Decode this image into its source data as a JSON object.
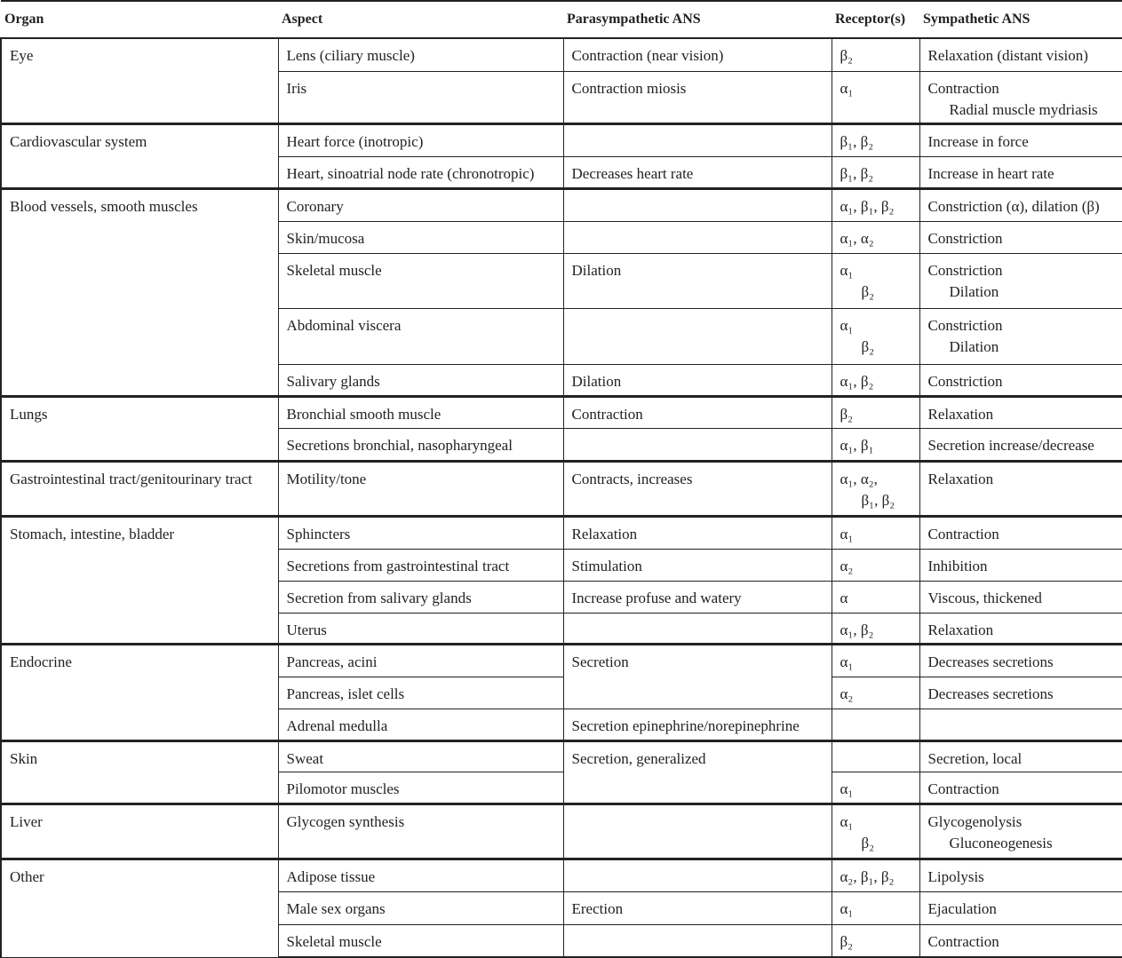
{
  "header": {
    "organ": "Organ",
    "aspect": "Aspect",
    "para": "Parasympathetic ANS",
    "rec": "Receptor(s)",
    "sym": "Sympathetic ANS"
  },
  "rows": [
    {
      "organ": "Eye",
      "aspect": "Lens (ciliary muscle)",
      "para": "Contraction (near vision)",
      "rec": [
        "β₂"
      ],
      "sym": [
        "Relaxation (distant vision)"
      ]
    },
    {
      "aspect": "Iris",
      "para": "Contraction miosis",
      "rec": [
        "α₁"
      ],
      "sym": [
        "Contraction",
        "Radial muscle mydriasis"
      ]
    },
    {
      "organ": "Cardiovascular system",
      "aspect": "Heart force (inotropic)",
      "para": "",
      "rec": [
        "β₁, β₂"
      ],
      "sym": [
        "Increase in force"
      ]
    },
    {
      "aspect": "Heart, sinoatrial node rate (chronotropic)",
      "para": "Decreases heart rate",
      "rec": [
        "β₁, β₂"
      ],
      "sym": [
        "Increase in heart rate"
      ]
    },
    {
      "organ": "Blood vessels, smooth muscles",
      "aspect": "Coronary",
      "para": "",
      "rec": [
        "α₁, β₁, β₂"
      ],
      "sym": [
        "Constriction (α), dilation (β)"
      ]
    },
    {
      "aspect": "Skin/mucosa",
      "para": "",
      "rec": [
        "α₁, α₂"
      ],
      "sym": [
        "Constriction"
      ]
    },
    {
      "aspect": "Skeletal muscle",
      "para": "Dilation",
      "rec": [
        "α₁",
        "β₂"
      ],
      "sym": [
        "Constriction",
        "Dilation"
      ]
    },
    {
      "aspect": "Abdominal viscera",
      "para": "",
      "rec": [
        "α₁",
        "β₂"
      ],
      "sym": [
        "Constriction",
        "Dilation"
      ]
    },
    {
      "aspect": "Salivary glands",
      "para": "Dilation",
      "rec": [
        "α₁, β₂"
      ],
      "sym": [
        "Constriction"
      ]
    },
    {
      "organ": "Lungs",
      "aspect": "Bronchial smooth muscle",
      "para": "Contraction",
      "rec": [
        "β₂"
      ],
      "sym": [
        "Relaxation"
      ]
    },
    {
      "aspect": "Secretions bronchial, nasopharyngeal",
      "para": "",
      "rec": [
        "α₁, β₁"
      ],
      "sym": [
        "Secretion increase/decrease"
      ]
    },
    {
      "organ": "Gastrointestinal tract/genitourinary tract",
      "aspect": "Motility/tone",
      "para": "Contracts, increases",
      "rec": [
        "α₁, α₂,",
        "β₁, β₂"
      ],
      "sym": [
        "Relaxation"
      ]
    },
    {
      "organ": "Stomach, intestine, bladder",
      "aspect": "Sphincters",
      "para": "Relaxation",
      "rec": [
        "α₁"
      ],
      "sym": [
        "Contraction"
      ]
    },
    {
      "aspect": "Secretions from gastrointestinal tract",
      "para": "Stimulation",
      "rec": [
        "α₂"
      ],
      "sym": [
        "Inhibition"
      ]
    },
    {
      "aspect": "Secretion from salivary glands",
      "para": "Increase profuse and watery",
      "rec": [
        "α"
      ],
      "sym": [
        "Viscous, thickened"
      ]
    },
    {
      "aspect": "Uterus",
      "para": "",
      "rec": [
        "α₁, β₂"
      ],
      "sym": [
        "Relaxation"
      ]
    },
    {
      "organ": "Endocrine",
      "aspect": "Pancreas, acini",
      "para": "Secretion",
      "rec": [
        "α₁"
      ],
      "sym": [
        "Decreases secretions"
      ]
    },
    {
      "aspect": "Pancreas, islet cells",
      "rec": [
        "α₂"
      ],
      "sym": [
        "Decreases secretions"
      ]
    },
    {
      "aspect": "Adrenal medulla",
      "para": "Secretion epinephrine/norepinephrine",
      "rec": [
        ""
      ],
      "sym": [
        ""
      ]
    },
    {
      "organ": "Skin",
      "aspect": "Sweat",
      "para": "Secretion, generalized",
      "rec": [
        ""
      ],
      "sym": [
        "Secretion, local"
      ]
    },
    {
      "aspect": "Pilomotor muscles",
      "rec": [
        "α₁"
      ],
      "sym": [
        "Contraction"
      ]
    },
    {
      "organ": "Liver",
      "aspect": "Glycogen synthesis",
      "para": "",
      "rec": [
        "α₁",
        "β₂"
      ],
      "sym": [
        "Glycogenolysis",
        "Gluconeogenesis"
      ]
    },
    {
      "organ": "Other",
      "aspect": "Adipose tissue",
      "para": "",
      "rec": [
        "α₂, β₁, β₂"
      ],
      "sym": [
        "Lipolysis"
      ]
    },
    {
      "aspect": "Male sex organs",
      "para": "Erection",
      "rec": [
        "α₁"
      ],
      "sym": [
        "Ejaculation"
      ]
    },
    {
      "aspect": "Skeletal muscle",
      "para": "",
      "rec": [
        "β₂"
      ],
      "sym": [
        "Contraction"
      ]
    }
  ]
}
